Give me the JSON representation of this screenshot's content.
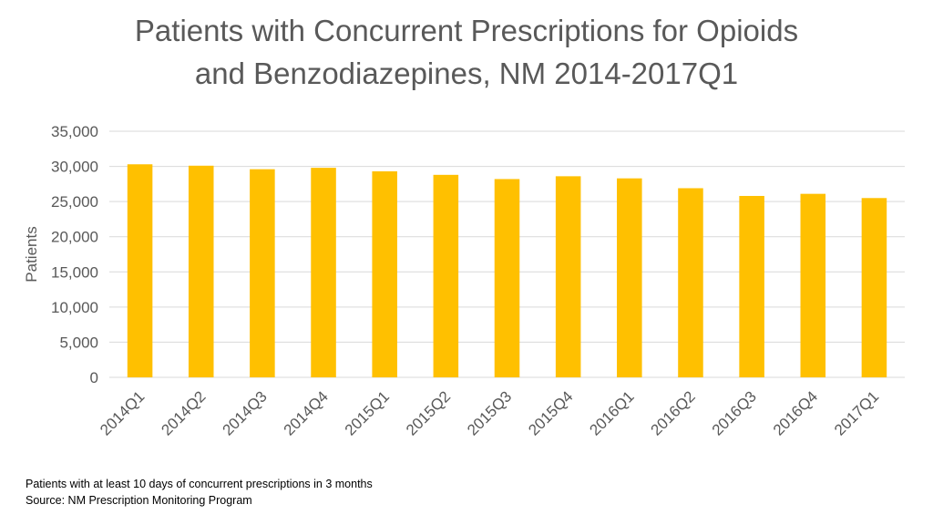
{
  "chart_data": {
    "type": "bar",
    "title_lines": [
      "Patients with Concurrent Prescriptions for Opioids",
      "and Benzodiazepines, NM 2014-2017Q1"
    ],
    "xlabel": "",
    "ylabel": "Patients",
    "categories": [
      "2014Q1",
      "2014Q2",
      "2014Q3",
      "2014Q4",
      "2015Q1",
      "2015Q2",
      "2015Q3",
      "2015Q4",
      "2016Q1",
      "2016Q2",
      "2016Q3",
      "2016Q4",
      "2017Q1"
    ],
    "values": [
      30300,
      30100,
      29600,
      29800,
      29300,
      28800,
      28200,
      28600,
      28300,
      26900,
      25800,
      26100,
      25500
    ],
    "ylim": [
      0,
      35000
    ],
    "yticks": [
      0,
      5000,
      10000,
      15000,
      20000,
      25000,
      30000,
      35000
    ],
    "ytick_labels": [
      "0",
      "5,000",
      "10,000",
      "15,000",
      "20,000",
      "25,000",
      "30,000",
      "35,000"
    ],
    "grid": true,
    "legend": "none",
    "bar_color": "#FFC000",
    "grid_color": "#D9D9D9"
  },
  "footnotes": {
    "note": "Patients with at least 10 days of concurrent prescriptions in 3 months",
    "source": "Source:  NM Prescription Monitoring Program"
  }
}
